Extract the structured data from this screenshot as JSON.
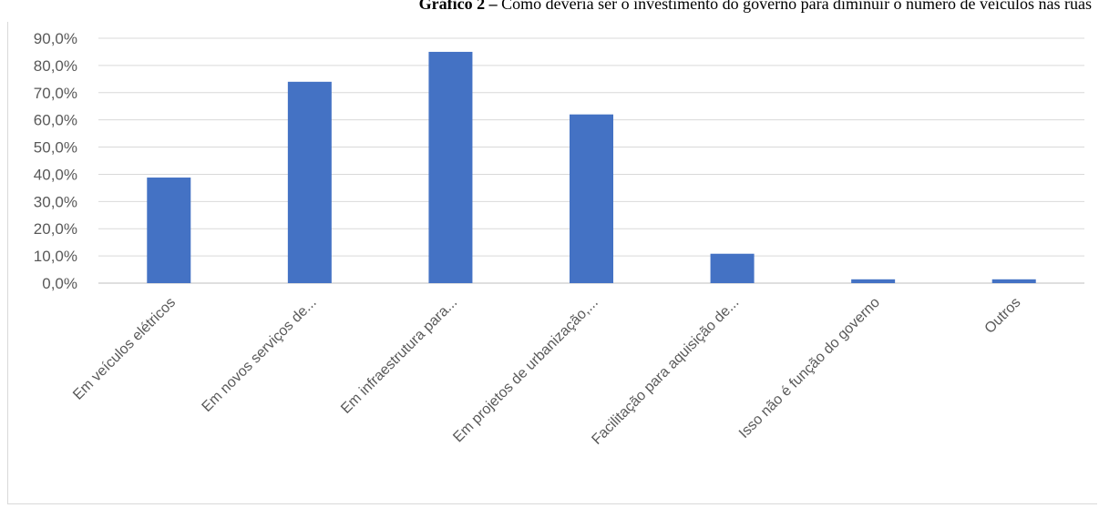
{
  "caption": {
    "bold": "Gráfico 2 –",
    "text": " Como deveria ser o investimento do governo para diminuir o número de veículos nas ruas"
  },
  "chart_data": {
    "type": "bar",
    "categories": [
      "Em veículos elétricos",
      "Em novos serviços de...",
      "Em infraestrutura para...",
      "Em projetos de urbanização,...",
      "Facilitação para aquisição de...",
      "Isso não é função do governo",
      "Outros"
    ],
    "values": [
      38.8,
      74.0,
      85.0,
      62.0,
      10.8,
      1.4,
      1.4
    ],
    "ylim": [
      0,
      90
    ],
    "yticks": [
      "0,0%",
      "10,0%",
      "20,0%",
      "30,0%",
      "40,0%",
      "50,0%",
      "60,0%",
      "70,0%",
      "80,0%",
      "90,0%"
    ],
    "bar_color": "#4472c4",
    "grid": true
  }
}
